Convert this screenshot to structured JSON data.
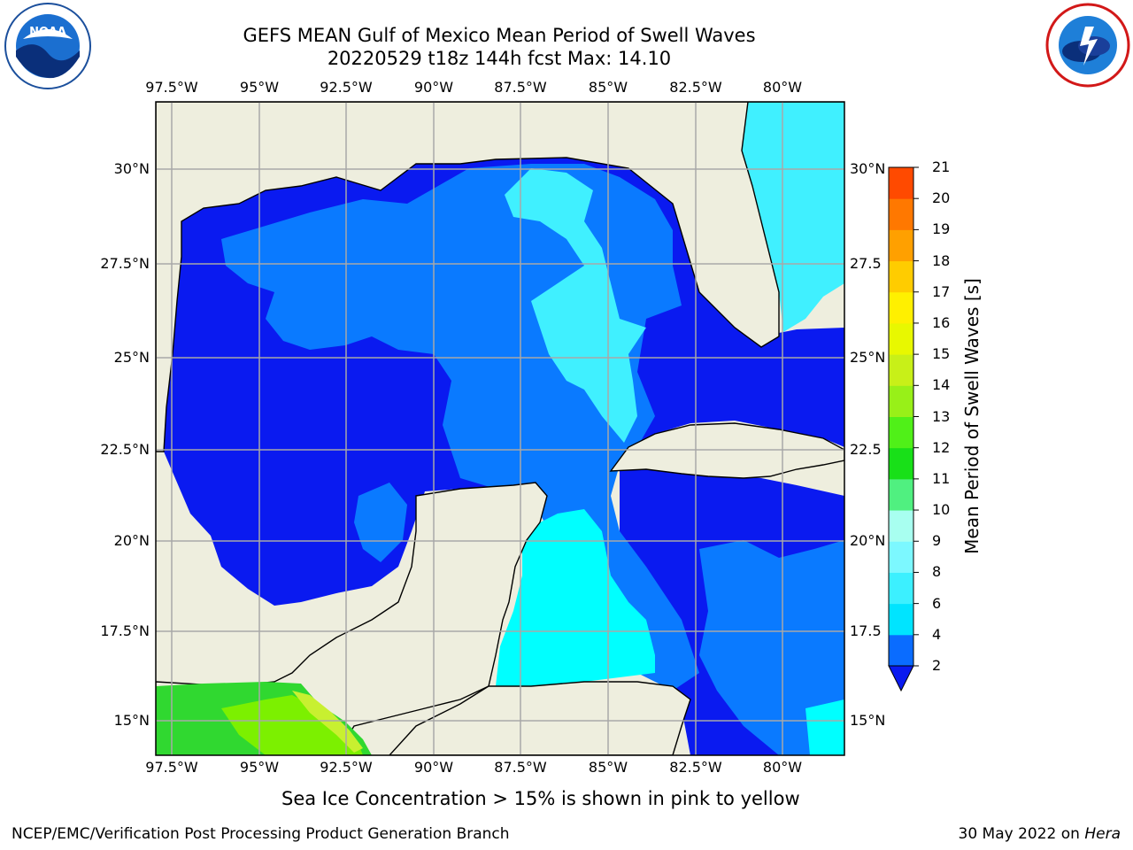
{
  "header": {
    "title_line1": "GEFS MEAN Gulf of Mexico Mean Period of Swell Waves",
    "title_line2": "20220529 t18z 144h fcst   Max: 14.10"
  },
  "logos": {
    "noaa": "NOAA",
    "noaa_ring": "NATIONAL OCEANIC AND ATMOSPHERIC ADMINISTRATION · U.S. DEPARTMENT OF COMMERCE",
    "nws_ring": "NATIONAL WEATHER SERVICE"
  },
  "axes": {
    "lon_ticks": [
      "97.5°W",
      "95°W",
      "92.5°W",
      "90°W",
      "87.5°W",
      "85°W",
      "82.5°W",
      "80°W"
    ],
    "lat_ticks_left": [
      "30°N",
      "27.5°N",
      "25°N",
      "22.5°N",
      "20°N",
      "17.5°N",
      "15°N"
    ],
    "lat_ticks_right": [
      "30°N",
      "27.5",
      "25°N",
      "22.5",
      "20°N",
      "17.5",
      "15°N"
    ]
  },
  "colorbar": {
    "title": "Mean Period of Swell Waves [s]",
    "levels": [
      "2",
      "4",
      "6",
      "8",
      "9",
      "10",
      "11",
      "12",
      "13",
      "14",
      "15",
      "16",
      "17",
      "18",
      "19",
      "20",
      "21"
    ],
    "colors": [
      "#0a6cff",
      "#00e4ff",
      "#3cf0ff",
      "#7cf8ff",
      "#a8fff0",
      "#50f080",
      "#18e018",
      "#50f018",
      "#98f018",
      "#c8f018",
      "#e8f800",
      "#fff000",
      "#ffcc00",
      "#ffa000",
      "#ff7800",
      "#ff4a00",
      "#ff1e00",
      "#ff0000"
    ],
    "extend_color": "#0a1af0"
  },
  "palette": {
    "land": "#eeeede",
    "deep_blue": "#0a1af0",
    "mid_blue": "#0a7aff",
    "cyan": "#00ffff",
    "light_cyan": "#40f0ff",
    "green": "#30d830",
    "lime": "#7cf000",
    "yellow_green": "#c8f030"
  },
  "note": "Sea Ice Concentration > 15% is shown in pink to yellow",
  "footer": {
    "left": "NCEP/EMC/Verification Post Processing Product Generation Branch",
    "date": "30 May 2022 on",
    "machine": "Hera"
  }
}
